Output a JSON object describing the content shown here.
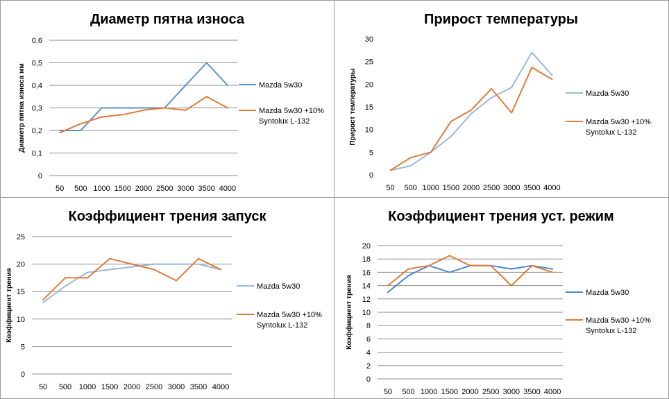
{
  "chart_data": [
    {
      "type": "line",
      "title": "Диаметр пятна износа",
      "ylabel": "Диаметр пятна износа мм",
      "xlabel": "",
      "categories": [
        "50",
        "500",
        "1000",
        "1500",
        "2000",
        "2500",
        "3000",
        "3500",
        "4000"
      ],
      "ylim": [
        0,
        0.6
      ],
      "yticks": [
        "0",
        "0,1",
        "0,2",
        "0,3",
        "0,4",
        "0,5",
        "0,6"
      ],
      "grid": true,
      "legend": "right",
      "series": [
        {
          "name": "Mazda 5w30",
          "color": "#5b8fc8",
          "values": [
            0.2,
            0.2,
            0.3,
            0.3,
            0.3,
            0.3,
            0.4,
            0.5,
            0.4
          ]
        },
        {
          "name": "Mazda 5w30 +10%",
          "name2": "Syntolux L-132",
          "color": "#e07b39",
          "values": [
            0.19,
            0.23,
            0.26,
            0.27,
            0.29,
            0.3,
            0.29,
            0.35,
            0.3
          ]
        }
      ]
    },
    {
      "type": "line",
      "title": "Прирост температуры",
      "ylabel": "Прирост температуры",
      "xlabel": "",
      "categories": [
        "50",
        "500",
        "1000",
        "1500",
        "2000",
        "2500",
        "3000",
        "3500",
        "4000"
      ],
      "ylim": [
        0,
        30
      ],
      "yticks": [
        "0",
        "5",
        "10",
        "15",
        "20",
        "25",
        "30"
      ],
      "grid": false,
      "legend": "right",
      "series": [
        {
          "name": "Mazda 5w30",
          "color": "#9bb7de",
          "values": [
            1,
            2,
            5,
            8.5,
            13.5,
            17,
            19.3,
            27,
            22
          ]
        },
        {
          "name": "Mazda 5w30 +10%",
          "name2": "Syntolux L-132",
          "color": "#e07b39",
          "values": [
            1,
            3.8,
            5,
            11.8,
            14.3,
            19,
            13.7,
            23.7,
            21.1
          ]
        }
      ]
    },
    {
      "type": "line",
      "title": "Коэффициент трения запуск",
      "ylabel": "Коэффициент трения",
      "xlabel": "",
      "categories": [
        "50",
        "500",
        "1000",
        "1500",
        "2000",
        "2500",
        "3000",
        "3500",
        "4000"
      ],
      "ylim": [
        0,
        25
      ],
      "yticks": [
        "0",
        "5",
        "10",
        "15",
        "20",
        "25"
      ],
      "grid": true,
      "legend": "right",
      "series": [
        {
          "name": "Mazda 5w30",
          "color": "#9bb7de",
          "values": [
            13,
            16,
            18.5,
            19,
            19.5,
            20,
            20,
            20,
            19
          ]
        },
        {
          "name": "Mazda 5w30 +10%",
          "name2": "Syntolux L-132",
          "color": "#e07b39",
          "values": [
            13.5,
            17.5,
            17.5,
            21,
            20,
            19,
            17,
            21,
            19
          ]
        }
      ]
    },
    {
      "type": "line",
      "title": "Коэффициент трения уст. режим",
      "ylabel": "Коэффициент трения",
      "xlabel": "",
      "categories": [
        "50",
        "500",
        "1000",
        "1500",
        "2000",
        "2500",
        "3000",
        "3500",
        "4000"
      ],
      "ylim": [
        0,
        20
      ],
      "yticks": [
        "0",
        "2",
        "4",
        "6",
        "8",
        "10",
        "12",
        "14",
        "16",
        "18",
        "20"
      ],
      "grid": true,
      "legend": "right",
      "series": [
        {
          "name": "Mazda 5w30",
          "color": "#4f86c6",
          "values": [
            13,
            15.5,
            17,
            16,
            17,
            17,
            16.5,
            17,
            16.5
          ]
        },
        {
          "name": "Mazda 5w30 +10%",
          "name2": "Syntolux L-132",
          "color": "#e07b39",
          "values": [
            14,
            16.5,
            17,
            18.5,
            17,
            17,
            14,
            17,
            16
          ]
        }
      ]
    }
  ]
}
